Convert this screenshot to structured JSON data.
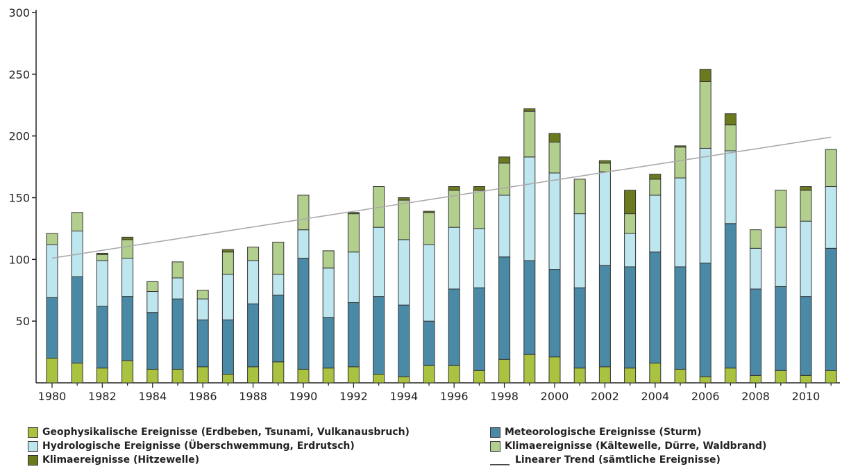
{
  "chart_data": {
    "type": "bar",
    "stacked": true,
    "x": [
      1980,
      1981,
      1982,
      1983,
      1984,
      1985,
      1986,
      1987,
      1988,
      1989,
      1990,
      1991,
      1992,
      1993,
      1994,
      1995,
      1996,
      1997,
      1998,
      1999,
      2000,
      2001,
      2002,
      2003,
      2004,
      2005,
      2006,
      2007,
      2008,
      2009,
      2010,
      2011
    ],
    "x_tick_labels": [
      "1980",
      "1982",
      "1984",
      "1986",
      "1988",
      "1990",
      "1992",
      "1994",
      "1996",
      "1998",
      "2000",
      "2002",
      "2004",
      "2006",
      "2008",
      "2010"
    ],
    "y_tick_labels": [
      "50",
      "100",
      "150",
      "200",
      "250",
      "300"
    ],
    "ylim": [
      0,
      300
    ],
    "title": "",
    "xlabel": "",
    "ylabel": "",
    "series": [
      {
        "name": "Geophysikalische Ereignisse (Erdbeben, Tsunami, Vulkanausbruch)",
        "color": "#a9c23f",
        "values": [
          20,
          16,
          12,
          18,
          11,
          11,
          13,
          7,
          13,
          17,
          11,
          12,
          13,
          7,
          5,
          14,
          14,
          10,
          19,
          23,
          21,
          12,
          13,
          12,
          16,
          11,
          5,
          12,
          6,
          10,
          6,
          10
        ]
      },
      {
        "name": "Meteorologische Ereignisse (Sturm)",
        "color": "#4a8aa6",
        "values": [
          49,
          70,
          50,
          52,
          46,
          57,
          38,
          44,
          51,
          54,
          90,
          41,
          52,
          63,
          58,
          36,
          62,
          67,
          83,
          76,
          71,
          65,
          82,
          82,
          90,
          83,
          92,
          117,
          70,
          68,
          64,
          99
        ]
      },
      {
        "name": "Hydrologische Ereignisse (Überschwemmung, Erdrutsch)",
        "color": "#bde6ee",
        "values": [
          43,
          37,
          37,
          31,
          17,
          17,
          17,
          37,
          35,
          17,
          23,
          40,
          41,
          56,
          53,
          62,
          50,
          48,
          50,
          84,
          78,
          60,
          76,
          27,
          46,
          72,
          93,
          59,
          33,
          48,
          61,
          50
        ]
      },
      {
        "name": "Klimaereignisse (Kältewelle, Dürre, Waldbrand)",
        "color": "#b2cf8e",
        "values": [
          9,
          15,
          5,
          15,
          8,
          13,
          7,
          18,
          11,
          26,
          28,
          14,
          31,
          33,
          32,
          26,
          30,
          31,
          26,
          37,
          25,
          28,
          7,
          16,
          13,
          25,
          54,
          21,
          15,
          30,
          25,
          30
        ]
      },
      {
        "name": "Klimaereignisse (Hitzewelle)",
        "color": "#6b7a1e",
        "values": [
          0,
          0,
          1,
          2,
          0,
          0,
          0,
          2,
          0,
          0,
          0,
          0,
          1,
          0,
          2,
          1,
          3,
          3,
          5,
          2,
          7,
          0,
          2,
          19,
          4,
          1,
          10,
          9,
          0,
          0,
          3,
          0
        ]
      }
    ],
    "trend": {
      "name": "Linearer Trend (sämtliche Ereignisse)",
      "color": "#aaaaaa",
      "y_start": 101,
      "y_end": 199
    }
  },
  "legend": {
    "geo": "Geophysikalische Ereignisse (Erdbeben, Tsunami, Vulkanausbruch)",
    "met": "Meteorologische Ereignisse (Sturm)",
    "hyd": "Hydrologische Ereignisse (Überschwemmung, Erdrutsch)",
    "klima": "Klimaereignisse (Kältewelle, Dürre, Waldbrand)",
    "hitze": "Klimaereignisse (Hitzewelle)",
    "trend_mark": "____",
    "trend": "Linearer Trend (sämtliche Ereignisse)"
  }
}
